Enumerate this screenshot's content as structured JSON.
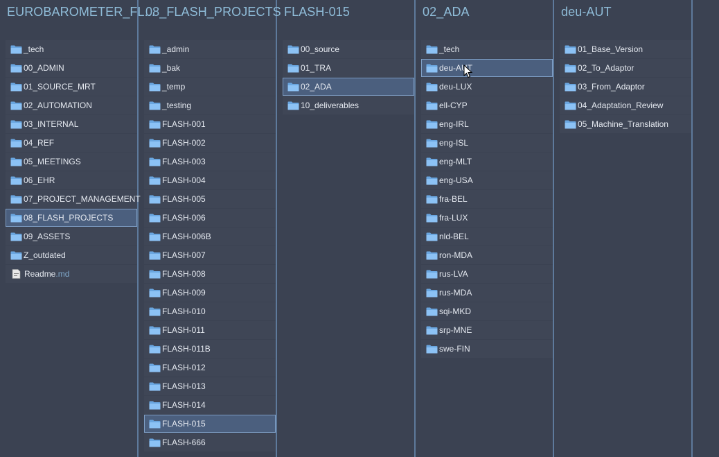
{
  "columns": [
    {
      "title": "EUROBAROMETER_FL...",
      "items": [
        {
          "name": "_tech",
          "type": "folder"
        },
        {
          "name": "00_ADMIN",
          "type": "folder"
        },
        {
          "name": "01_SOURCE_MRT",
          "type": "folder"
        },
        {
          "name": "02_AUTOMATION",
          "type": "folder"
        },
        {
          "name": "03_INTERNAL",
          "type": "folder"
        },
        {
          "name": "04_REF",
          "type": "folder"
        },
        {
          "name": "05_MEETINGS",
          "type": "folder"
        },
        {
          "name": "06_EHR",
          "type": "folder"
        },
        {
          "name": "07_PROJECT_MANAGEMENT",
          "type": "folder"
        },
        {
          "name": "08_FLASH_PROJECTS",
          "type": "folder",
          "selected": true
        },
        {
          "name": "09_ASSETS",
          "type": "folder"
        },
        {
          "name": "Z_outdated",
          "type": "folder"
        },
        {
          "name": "Readme",
          "ext": ".md",
          "type": "file"
        }
      ]
    },
    {
      "title": "08_FLASH_PROJECTS",
      "items": [
        {
          "name": "_admin",
          "type": "folder"
        },
        {
          "name": "_bak",
          "type": "folder"
        },
        {
          "name": "_temp",
          "type": "folder"
        },
        {
          "name": "_testing",
          "type": "folder"
        },
        {
          "name": "FLASH-001",
          "type": "folder"
        },
        {
          "name": "FLASH-002",
          "type": "folder"
        },
        {
          "name": "FLASH-003",
          "type": "folder"
        },
        {
          "name": "FLASH-004",
          "type": "folder"
        },
        {
          "name": "FLASH-005",
          "type": "folder"
        },
        {
          "name": "FLASH-006",
          "type": "folder"
        },
        {
          "name": "FLASH-006B",
          "type": "folder"
        },
        {
          "name": "FLASH-007",
          "type": "folder"
        },
        {
          "name": "FLASH-008",
          "type": "folder"
        },
        {
          "name": "FLASH-009",
          "type": "folder"
        },
        {
          "name": "FLASH-010",
          "type": "folder"
        },
        {
          "name": "FLASH-011",
          "type": "folder"
        },
        {
          "name": "FLASH-011B",
          "type": "folder"
        },
        {
          "name": "FLASH-012",
          "type": "folder"
        },
        {
          "name": "FLASH-013",
          "type": "folder"
        },
        {
          "name": "FLASH-014",
          "type": "folder"
        },
        {
          "name": "FLASH-015",
          "type": "folder",
          "selected": true
        },
        {
          "name": "FLASH-666",
          "type": "folder"
        }
      ]
    },
    {
      "title": "FLASH-015",
      "items": [
        {
          "name": "00_source",
          "type": "folder"
        },
        {
          "name": "01_TRA",
          "type": "folder"
        },
        {
          "name": "02_ADA",
          "type": "folder",
          "selected": true
        },
        {
          "name": "10_deliverables",
          "type": "folder"
        }
      ]
    },
    {
      "title": "02_ADA",
      "items": [
        {
          "name": "_tech",
          "type": "folder"
        },
        {
          "name": "deu-AUT",
          "type": "folder",
          "selected": true
        },
        {
          "name": "deu-LUX",
          "type": "folder"
        },
        {
          "name": "ell-CYP",
          "type": "folder"
        },
        {
          "name": "eng-IRL",
          "type": "folder"
        },
        {
          "name": "eng-ISL",
          "type": "folder"
        },
        {
          "name": "eng-MLT",
          "type": "folder"
        },
        {
          "name": "eng-USA",
          "type": "folder"
        },
        {
          "name": "fra-BEL",
          "type": "folder"
        },
        {
          "name": "fra-LUX",
          "type": "folder"
        },
        {
          "name": "nld-BEL",
          "type": "folder"
        },
        {
          "name": "ron-MDA",
          "type": "folder"
        },
        {
          "name": "rus-LVA",
          "type": "folder"
        },
        {
          "name": "rus-MDA",
          "type": "folder"
        },
        {
          "name": "sqi-MKD",
          "type": "folder"
        },
        {
          "name": "srp-MNE",
          "type": "folder"
        },
        {
          "name": "swe-FIN",
          "type": "folder"
        }
      ]
    },
    {
      "title": "deu-AUT",
      "items": [
        {
          "name": "01_Base_Version",
          "type": "folder"
        },
        {
          "name": "02_To_Adaptor",
          "type": "folder"
        },
        {
          "name": "03_From_Adaptor",
          "type": "folder"
        },
        {
          "name": "04_Adaptation_Review",
          "type": "folder"
        },
        {
          "name": "05_Machine_Translation",
          "type": "folder"
        }
      ]
    }
  ],
  "colors": {
    "background": "#3b4252",
    "item_background": "#3f4656",
    "selected_background": "#4b5f7e",
    "title": "#8fbcd8",
    "folder": "#7fb6ee",
    "divider": "#5e7a9c"
  },
  "icons": {
    "folder": "folder-icon",
    "file": "markdown-file-icon",
    "cursor": "mouse-pointer-icon"
  }
}
